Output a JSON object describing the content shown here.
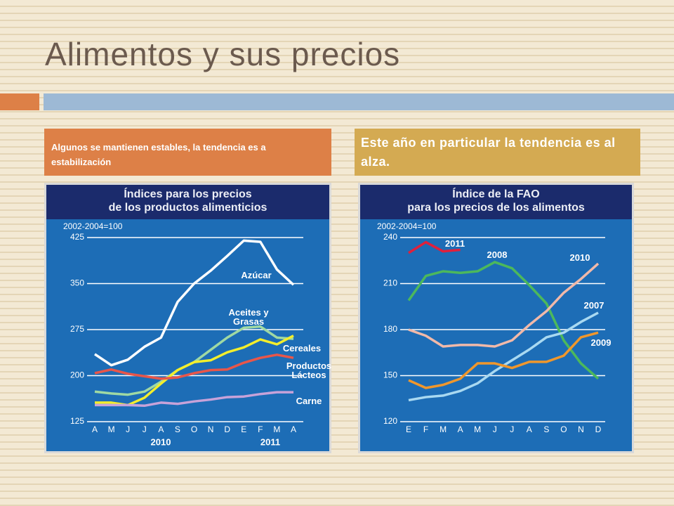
{
  "slide": {
    "title": "Alimentos y sus precios",
    "caption_left": "Algunos se mantienen estables, la tendencia es a estabilización",
    "caption_right": "Este año en particular la tendencia es al alza."
  },
  "chart_data": [
    {
      "type": "line",
      "title": [
        "Índices para los precios",
        "de los productos alimenticios"
      ],
      "subtitle": "2002-2004=100",
      "categories": [
        "A",
        "M",
        "J",
        "J",
        "A",
        "S",
        "O",
        "N",
        "D",
        "E",
        "F",
        "M",
        "A"
      ],
      "years": [
        "2010",
        "2011"
      ],
      "ylim": [
        125,
        425
      ],
      "yticks": [
        125,
        200,
        275,
        350,
        425
      ],
      "grid": true,
      "series": [
        {
          "name": "Azúcar",
          "color": "#ffffff",
          "values": [
            235,
            217,
            226,
            247,
            262,
            320,
            350,
            371,
            395,
            420,
            418,
            373,
            348
          ]
        },
        {
          "name": "Aceites y Grasas",
          "color": "#9fd9a3",
          "values": [
            174,
            171,
            169,
            174,
            190,
            209,
            222,
            242,
            262,
            278,
            280,
            262,
            260
          ]
        },
        {
          "name": "Cereales",
          "color": "#f2ee2c",
          "values": [
            156,
            156,
            152,
            164,
            187,
            209,
            222,
            225,
            238,
            246,
            259,
            251,
            265
          ]
        },
        {
          "name": "Productos Lácteos",
          "color": "#e8564a",
          "values": [
            204,
            210,
            203,
            199,
            195,
            197,
            204,
            209,
            210,
            221,
            229,
            234,
            229
          ]
        },
        {
          "name": "Carne",
          "color": "#c7a2d9",
          "values": [
            152,
            152,
            152,
            151,
            156,
            154,
            158,
            161,
            165,
            166,
            170,
            173,
            173
          ]
        }
      ]
    },
    {
      "type": "line",
      "title": [
        "Índice de la FAO",
        "para los precios de los alimentos"
      ],
      "subtitle": "2002-2004=100",
      "categories": [
        "E",
        "F",
        "M",
        "A",
        "M",
        "J",
        "J",
        "A",
        "S",
        "O",
        "N",
        "D"
      ],
      "ylim": [
        120,
        240
      ],
      "yticks": [
        120,
        150,
        180,
        210,
        240
      ],
      "grid": true,
      "series": [
        {
          "name": "2011",
          "color": "#e0203c",
          "values": [
            230,
            237,
            231,
            232,
            null,
            null,
            null,
            null,
            null,
            null,
            null,
            null
          ]
        },
        {
          "name": "2008",
          "color": "#4cb85c",
          "values": [
            199,
            215,
            218,
            217,
            218,
            224,
            220,
            209,
            197,
            173,
            158,
            148
          ]
        },
        {
          "name": "2010",
          "color": "#f1b9a9",
          "values": [
            180,
            176,
            169,
            170,
            170,
            169,
            173,
            183,
            192,
            204,
            213,
            223
          ]
        },
        {
          "name": "2007",
          "color": "#a9d9f1",
          "values": [
            134,
            136,
            137,
            140,
            145,
            153,
            160,
            167,
            175,
            178,
            185,
            191
          ]
        },
        {
          "name": "2009",
          "color": "#f0972c",
          "values": [
            147,
            142,
            144,
            148,
            158,
            158,
            155,
            159,
            159,
            163,
            175,
            178
          ]
        }
      ]
    }
  ]
}
